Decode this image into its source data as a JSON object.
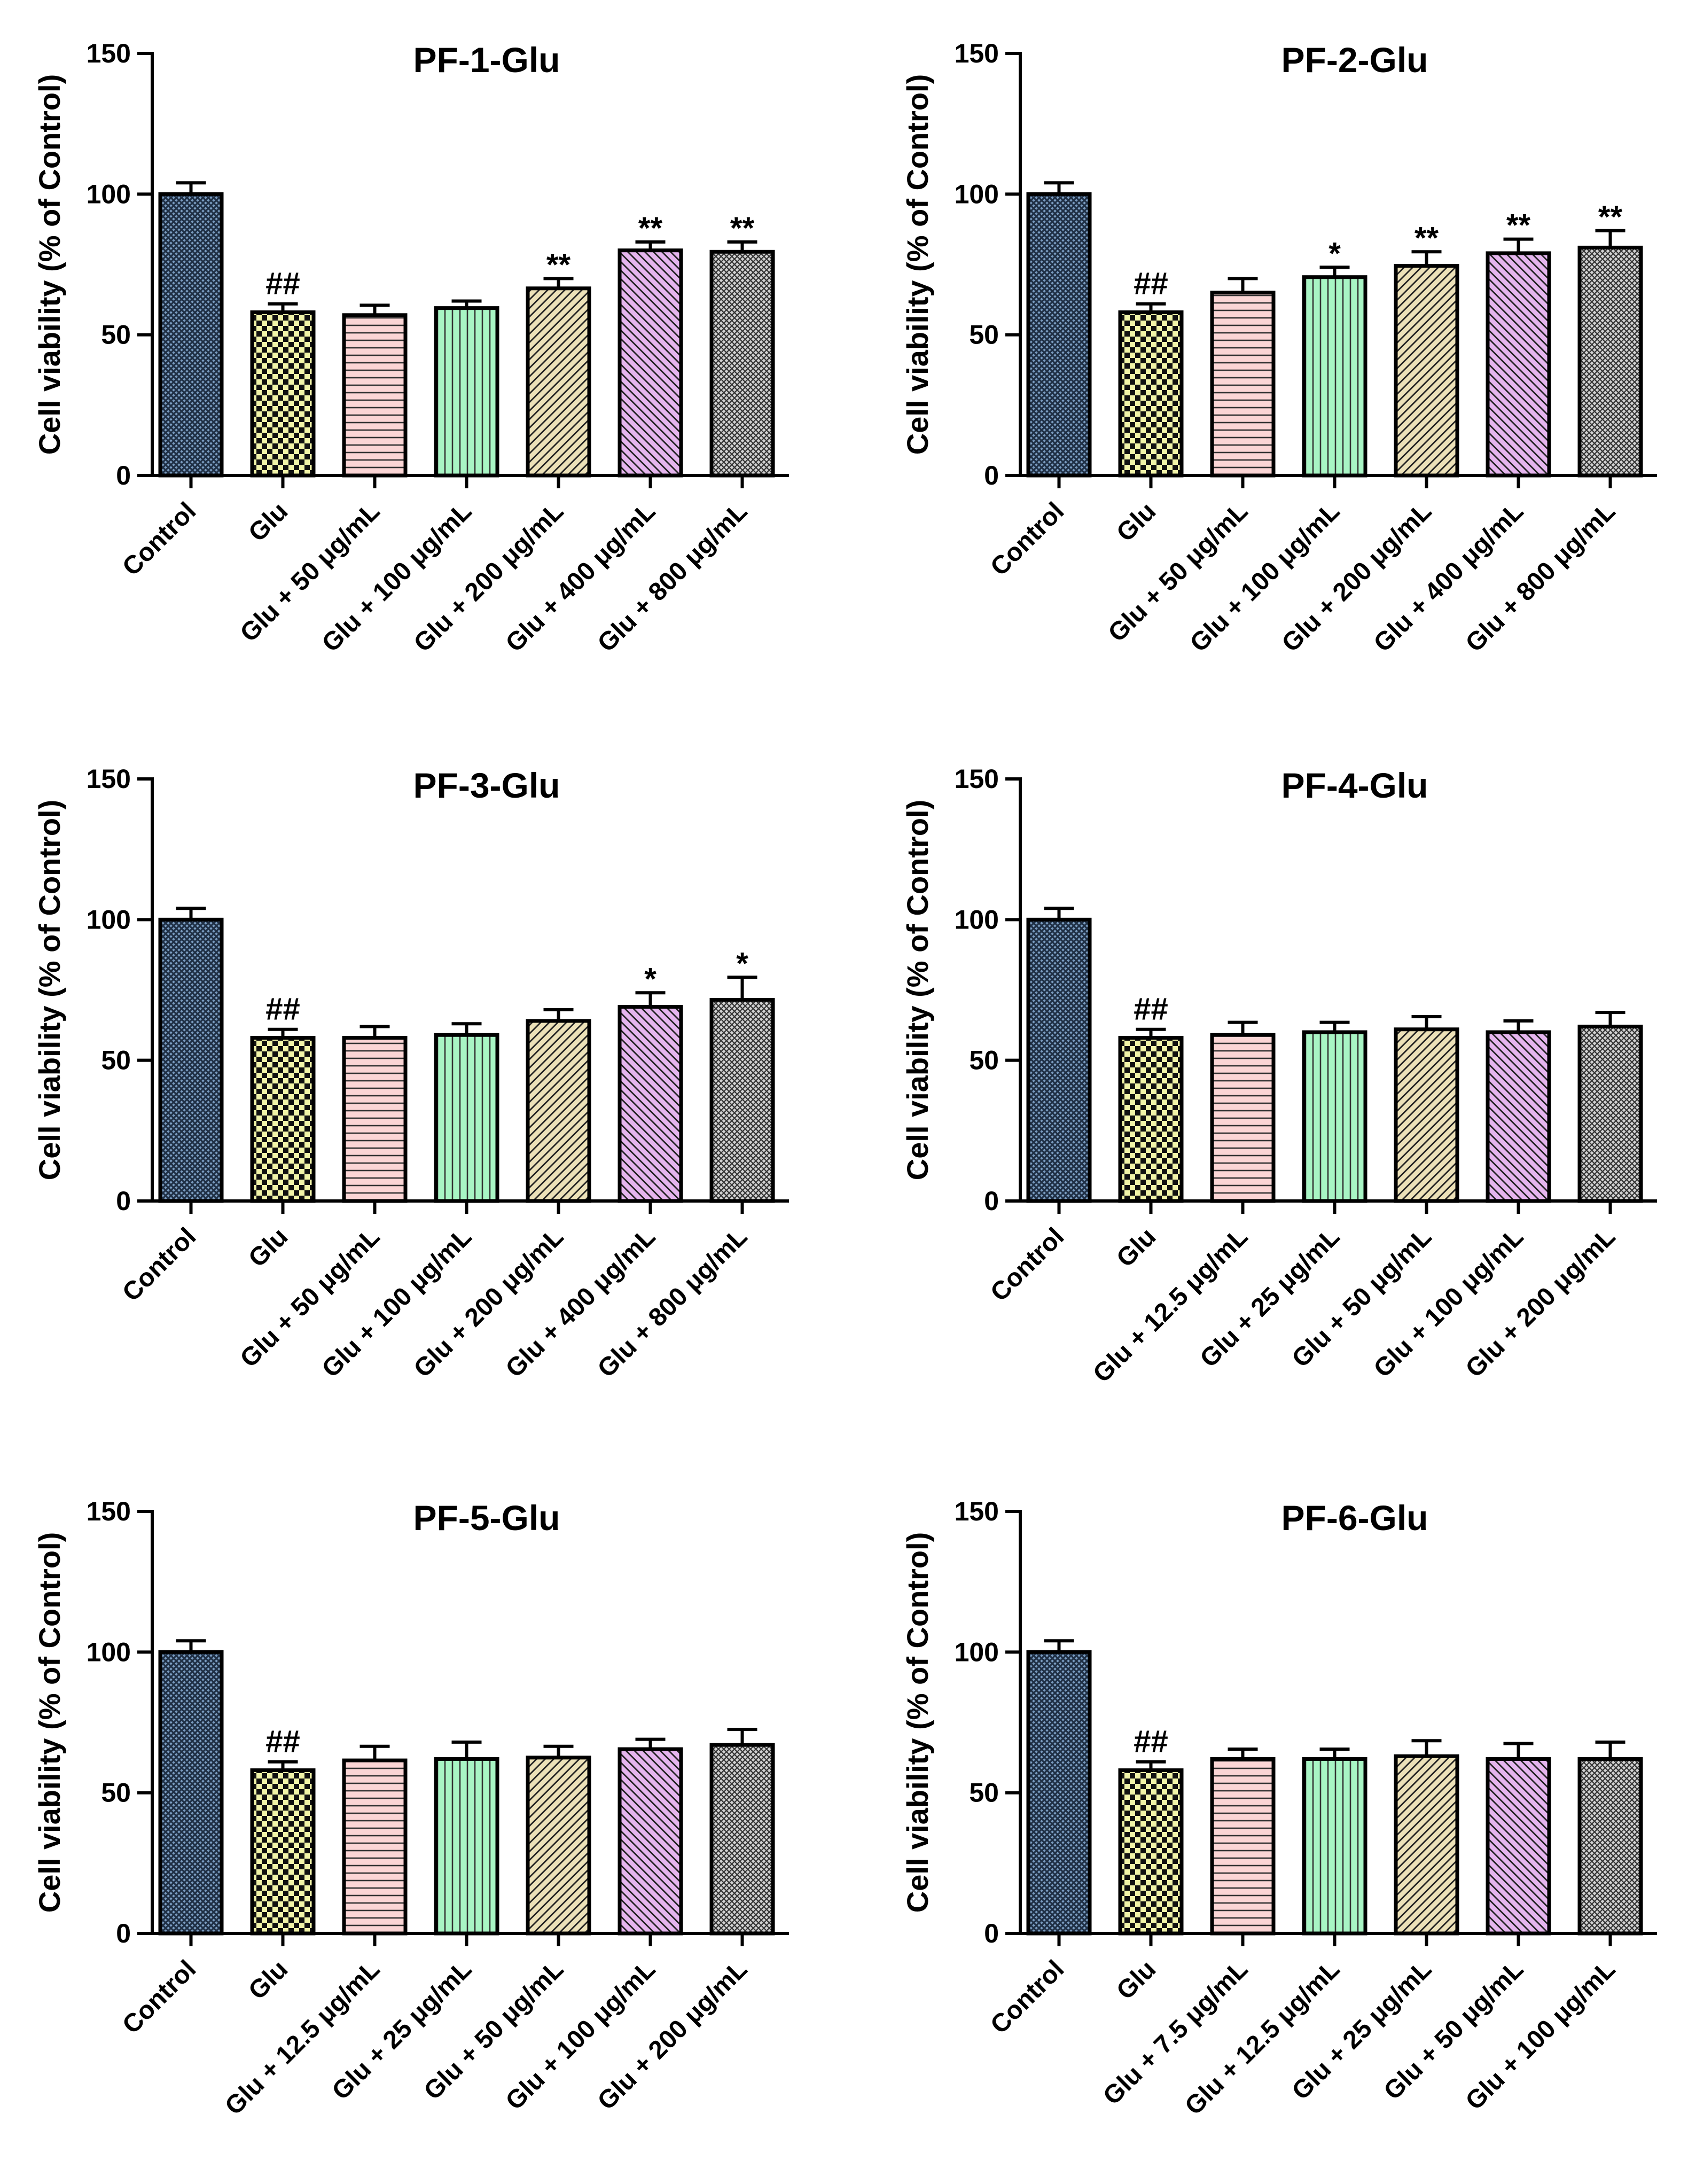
{
  "colors": {
    "control": "#7a9cc0",
    "glu": "#f1f4a8",
    "dose1": "#fbd5d5",
    "dose2": "#a8f5c4",
    "dose3": "#ece1b8",
    "dose4": "#e5b5ee",
    "dose5": "#d2d2d2"
  },
  "chart_data": [
    {
      "type": "bar",
      "title": "PF-1-Glu",
      "ylabel": "Cell viability (% of Control)",
      "ylim": [
        0,
        150
      ],
      "yticks": [
        "0",
        "50",
        "100",
        "150"
      ],
      "categories": [
        "Control",
        "Glu",
        "Glu + 50 μg/mL",
        "Glu + 100 μg/mL",
        "Glu + 200 μg/mL",
        "Glu + 400 μg/mL",
        "Glu + 800 μg/mL"
      ],
      "values": [
        100,
        58,
        57,
        59.5,
        66.5,
        80,
        79.5
      ],
      "errors": [
        4,
        3,
        3.5,
        2.5,
        3.5,
        3,
        3.5
      ],
      "annotations": [
        "",
        "##",
        "",
        "",
        "**",
        "**",
        "**"
      ]
    },
    {
      "type": "bar",
      "title": "PF-2-Glu",
      "ylabel": "Cell viability (% of Control)",
      "ylim": [
        0,
        150
      ],
      "yticks": [
        "0",
        "50",
        "100",
        "150"
      ],
      "categories": [
        "Control",
        "Glu",
        "Glu + 50 μg/mL",
        "Glu + 100 μg/mL",
        "Glu + 200 μg/mL",
        "Glu + 400 μg/mL",
        "Glu + 800 μg/mL"
      ],
      "values": [
        100,
        58,
        65,
        70.5,
        74.5,
        79,
        81
      ],
      "errors": [
        4,
        3,
        5,
        3.5,
        5,
        5,
        6
      ],
      "annotations": [
        "",
        "##",
        "",
        "*",
        "**",
        "**",
        "**"
      ]
    },
    {
      "type": "bar",
      "title": "PF-3-Glu",
      "ylabel": "Cell viability (% of Control)",
      "ylim": [
        0,
        150
      ],
      "yticks": [
        "0",
        "50",
        "100",
        "150"
      ],
      "categories": [
        "Control",
        "Glu",
        "Glu + 50 μg/mL",
        "Glu + 100 μg/mL",
        "Glu + 200 μg/mL",
        "Glu + 400 μg/mL",
        "Glu + 800 μg/mL"
      ],
      "values": [
        100,
        58,
        58,
        59,
        64,
        69,
        71.5
      ],
      "errors": [
        4,
        3,
        4,
        4,
        4,
        5,
        8
      ],
      "annotations": [
        "",
        "##",
        "",
        "",
        "",
        "*",
        "*"
      ]
    },
    {
      "type": "bar",
      "title": "PF-4-Glu",
      "ylabel": "Cell viability (% of Control)",
      "ylim": [
        0,
        150
      ],
      "yticks": [
        "0",
        "50",
        "100",
        "150"
      ],
      "categories": [
        "Control",
        "Glu",
        "Glu + 12.5 μg/mL",
        "Glu + 25 μg/mL",
        "Glu + 50 μg/mL",
        "Glu + 100 μg/mL",
        "Glu + 200 μg/mL"
      ],
      "values": [
        100,
        58,
        59,
        60,
        61,
        60,
        62
      ],
      "errors": [
        4,
        3,
        4.5,
        3.5,
        4.5,
        4,
        5
      ],
      "annotations": [
        "",
        "##",
        "",
        "",
        "",
        "",
        ""
      ]
    },
    {
      "type": "bar",
      "title": "PF-5-Glu",
      "ylabel": "Cell viability (% of Control)",
      "ylim": [
        0,
        150
      ],
      "yticks": [
        "0",
        "50",
        "100",
        "150"
      ],
      "categories": [
        "Control",
        "Glu",
        "Glu + 12.5 μg/mL",
        "Glu + 25 μg/mL",
        "Glu + 50 μg/mL",
        "Glu + 100 μg/mL",
        "Glu + 200 μg/mL"
      ],
      "values": [
        100,
        58,
        61.5,
        62,
        62.5,
        65.5,
        67
      ],
      "errors": [
        4,
        3,
        5,
        6,
        4,
        3.5,
        5.5
      ],
      "annotations": [
        "",
        "##",
        "",
        "",
        "",
        "",
        ""
      ]
    },
    {
      "type": "bar",
      "title": "PF-6-Glu",
      "ylabel": "Cell viability (% of Control)",
      "ylim": [
        0,
        150
      ],
      "yticks": [
        "0",
        "50",
        "100",
        "150"
      ],
      "categories": [
        "Control",
        "Glu",
        "Glu + 7.5 μg/mL",
        "Glu + 12.5 μg/mL",
        "Glu + 25 μg/mL",
        "Glu + 50 μg/mL",
        "Glu + 100 μg/mL"
      ],
      "values": [
        100,
        58,
        62,
        62,
        63,
        62,
        62
      ],
      "errors": [
        4,
        3,
        3.5,
        3.5,
        5.5,
        5.5,
        6
      ],
      "annotations": [
        "",
        "##",
        "",
        "",
        "",
        "",
        ""
      ]
    }
  ]
}
